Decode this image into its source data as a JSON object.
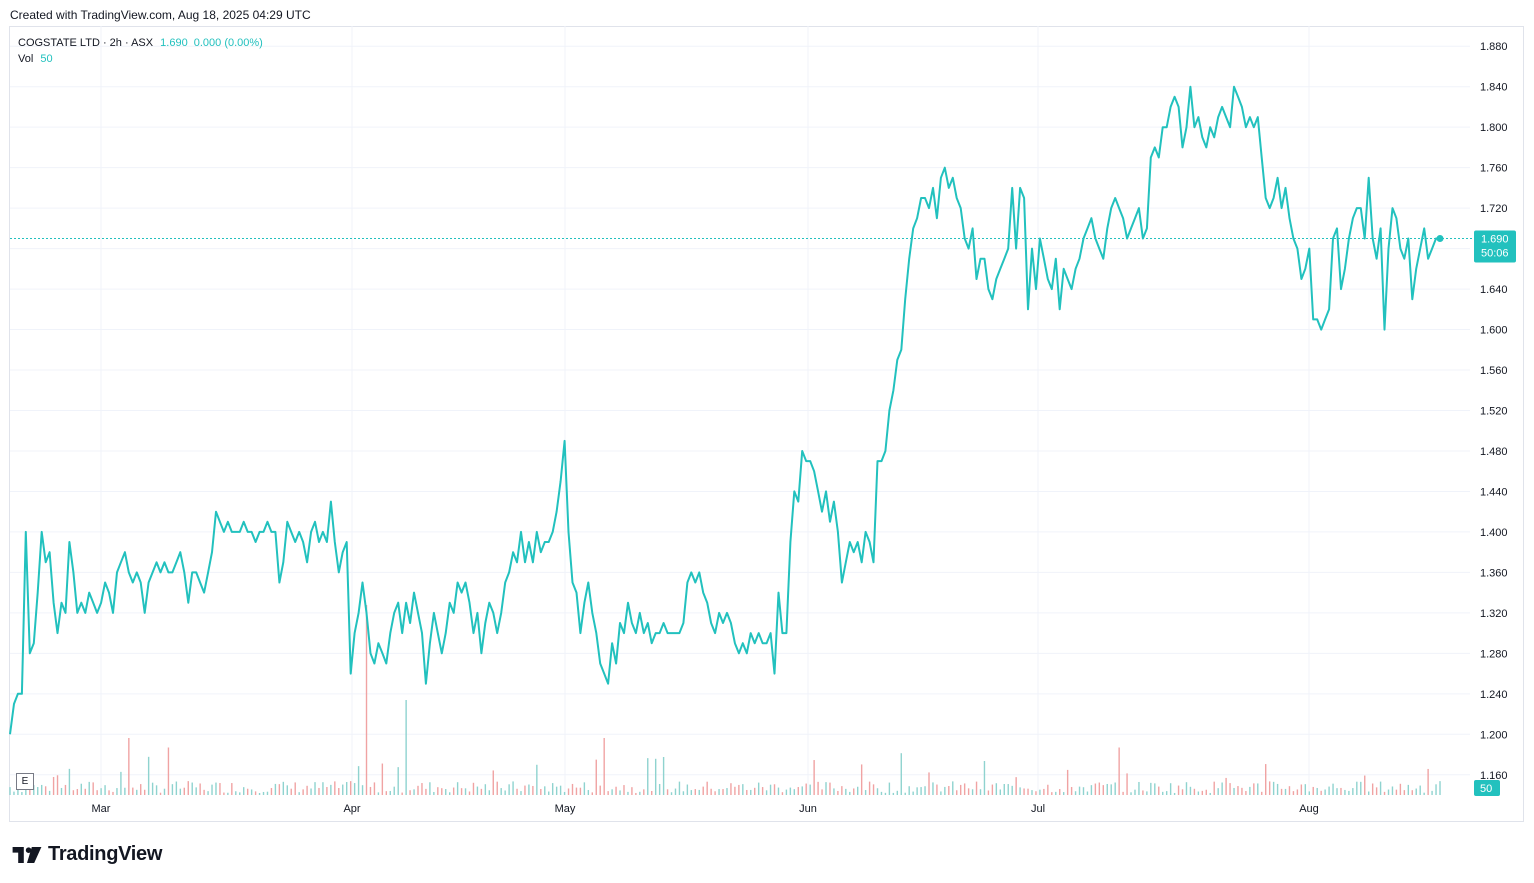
{
  "header": {
    "created_note": "Created with TradingView.com, Aug 18, 2025 04:29 UTC"
  },
  "legend": {
    "symbol": "COGSTATE LTD · 2h · ASX",
    "price": "1.690",
    "change": "0.000 (0.00%)",
    "vol_label": "Vol",
    "vol_value": "50"
  },
  "badges": {
    "last_price": "1.690",
    "countdown": "50:06",
    "volume": "50"
  },
  "footer": {
    "brand": "TradingView",
    "e_label": "E"
  },
  "colors": {
    "line": "#22c1be",
    "vol_up": "#8fd3cf",
    "vol_down": "#f0a3a3",
    "grid": "#f0f3fa",
    "axis_text": "#131722"
  },
  "chart_data": {
    "type": "line",
    "title": "COGSTATE LTD · 2h · ASX",
    "xlabel": "",
    "ylabel": "",
    "x_tick_labels": [
      "Mar",
      "Apr",
      "May",
      "Jun",
      "Jul",
      "Aug"
    ],
    "y_ticks": [
      "1.160",
      "1.200",
      "1.240",
      "1.280",
      "1.320",
      "1.360",
      "1.400",
      "1.440",
      "1.480",
      "1.520",
      "1.560",
      "1.600",
      "1.640",
      "1.680",
      "1.720",
      "1.760",
      "1.800",
      "1.840",
      "1.880"
    ],
    "ylim": [
      1.14,
      1.9
    ],
    "grid": true,
    "last_value": 1.69,
    "series": [
      {
        "values": [
          1.2,
          1.23,
          1.24,
          1.24,
          1.4,
          1.28,
          1.29,
          1.34,
          1.4,
          1.37,
          1.38,
          1.33,
          1.3,
          1.33,
          1.32,
          1.39,
          1.36,
          1.32,
          1.33,
          1.32,
          1.34,
          1.33,
          1.32,
          1.33,
          1.35,
          1.34,
          1.32,
          1.36,
          1.37,
          1.38,
          1.36,
          1.35,
          1.36,
          1.35,
          1.32,
          1.35,
          1.36,
          1.37,
          1.36,
          1.37,
          1.36,
          1.36,
          1.37,
          1.38,
          1.36,
          1.33,
          1.36,
          1.36,
          1.35,
          1.34,
          1.36,
          1.38,
          1.42,
          1.41,
          1.4,
          1.41,
          1.4,
          1.4,
          1.4,
          1.41,
          1.4,
          1.4,
          1.39,
          1.4,
          1.4,
          1.41,
          1.4,
          1.4,
          1.35,
          1.37,
          1.41,
          1.4,
          1.39,
          1.4,
          1.39,
          1.37,
          1.4,
          1.41,
          1.39,
          1.4,
          1.39,
          1.43,
          1.39,
          1.36,
          1.38,
          1.39,
          1.26,
          1.3,
          1.32,
          1.35,
          1.32,
          1.28,
          1.27,
          1.29,
          1.28,
          1.27,
          1.3,
          1.32,
          1.33,
          1.3,
          1.33,
          1.31,
          1.34,
          1.32,
          1.3,
          1.25,
          1.29,
          1.32,
          1.3,
          1.28,
          1.3,
          1.33,
          1.32,
          1.35,
          1.34,
          1.35,
          1.33,
          1.3,
          1.32,
          1.28,
          1.31,
          1.33,
          1.32,
          1.3,
          1.32,
          1.35,
          1.36,
          1.38,
          1.37,
          1.4,
          1.37,
          1.39,
          1.37,
          1.4,
          1.38,
          1.39,
          1.39,
          1.4,
          1.42,
          1.45,
          1.49,
          1.4,
          1.35,
          1.34,
          1.3,
          1.33,
          1.35,
          1.32,
          1.3,
          1.27,
          1.26,
          1.25,
          1.29,
          1.27,
          1.31,
          1.3,
          1.33,
          1.31,
          1.3,
          1.32,
          1.3,
          1.31,
          1.29,
          1.3,
          1.3,
          1.31,
          1.3,
          1.3,
          1.3,
          1.3,
          1.31,
          1.35,
          1.36,
          1.35,
          1.36,
          1.34,
          1.33,
          1.31,
          1.3,
          1.32,
          1.31,
          1.32,
          1.31,
          1.29,
          1.28,
          1.29,
          1.28,
          1.3,
          1.29,
          1.3,
          1.29,
          1.29,
          1.3,
          1.26,
          1.34,
          1.3,
          1.3,
          1.39,
          1.44,
          1.43,
          1.48,
          1.47,
          1.47,
          1.46,
          1.44,
          1.42,
          1.44,
          1.41,
          1.43,
          1.4,
          1.35,
          1.37,
          1.39,
          1.38,
          1.39,
          1.37,
          1.4,
          1.39,
          1.37,
          1.47,
          1.47,
          1.48,
          1.52,
          1.54,
          1.57,
          1.58,
          1.63,
          1.67,
          1.7,
          1.71,
          1.73,
          1.73,
          1.72,
          1.74,
          1.71,
          1.75,
          1.76,
          1.74,
          1.75,
          1.73,
          1.72,
          1.69,
          1.68,
          1.7,
          1.65,
          1.67,
          1.67,
          1.64,
          1.63,
          1.65,
          1.66,
          1.67,
          1.68,
          1.74,
          1.68,
          1.74,
          1.73,
          1.62,
          1.68,
          1.64,
          1.69,
          1.67,
          1.65,
          1.64,
          1.67,
          1.62,
          1.66,
          1.65,
          1.64,
          1.66,
          1.67,
          1.69,
          1.7,
          1.71,
          1.69,
          1.68,
          1.67,
          1.7,
          1.72,
          1.73,
          1.72,
          1.71,
          1.69,
          1.7,
          1.71,
          1.72,
          1.69,
          1.7,
          1.77,
          1.78,
          1.77,
          1.8,
          1.8,
          1.82,
          1.83,
          1.82,
          1.78,
          1.8,
          1.84,
          1.8,
          1.81,
          1.79,
          1.78,
          1.8,
          1.79,
          1.81,
          1.82,
          1.81,
          1.8,
          1.84,
          1.83,
          1.82,
          1.8,
          1.81,
          1.8,
          1.81,
          1.77,
          1.73,
          1.72,
          1.73,
          1.75,
          1.72,
          1.74,
          1.71,
          1.69,
          1.68,
          1.65,
          1.66,
          1.68,
          1.61,
          1.61,
          1.6,
          1.61,
          1.62,
          1.69,
          1.7,
          1.64,
          1.66,
          1.69,
          1.71,
          1.72,
          1.72,
          1.69,
          1.75,
          1.69,
          1.67,
          1.7,
          1.6,
          1.68,
          1.72,
          1.71,
          1.68,
          1.67,
          1.69,
          1.63,
          1.66,
          1.68,
          1.7,
          1.67,
          1.68,
          1.69,
          1.69
        ]
      }
    ]
  }
}
